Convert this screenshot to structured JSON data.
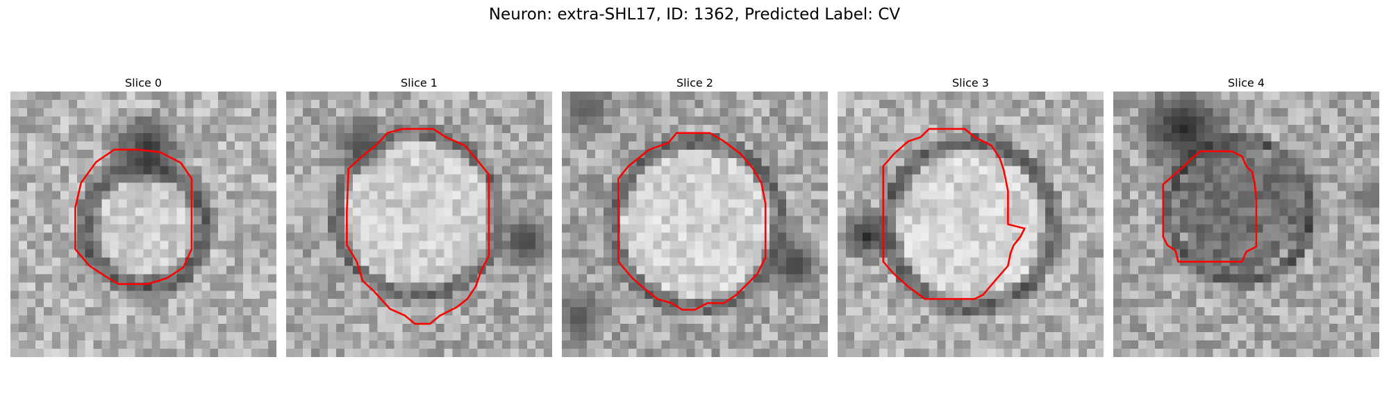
{
  "figure": {
    "title": "Neuron: extra-SHL17, ID: 1362, Predicted Label: CV",
    "contour_color": "#ff0000"
  },
  "slices": [
    {
      "title": "Slice 0"
    },
    {
      "title": "Slice 1"
    },
    {
      "title": "Slice 2"
    },
    {
      "title": "Slice 3"
    },
    {
      "title": "Slice 4"
    }
  ]
}
